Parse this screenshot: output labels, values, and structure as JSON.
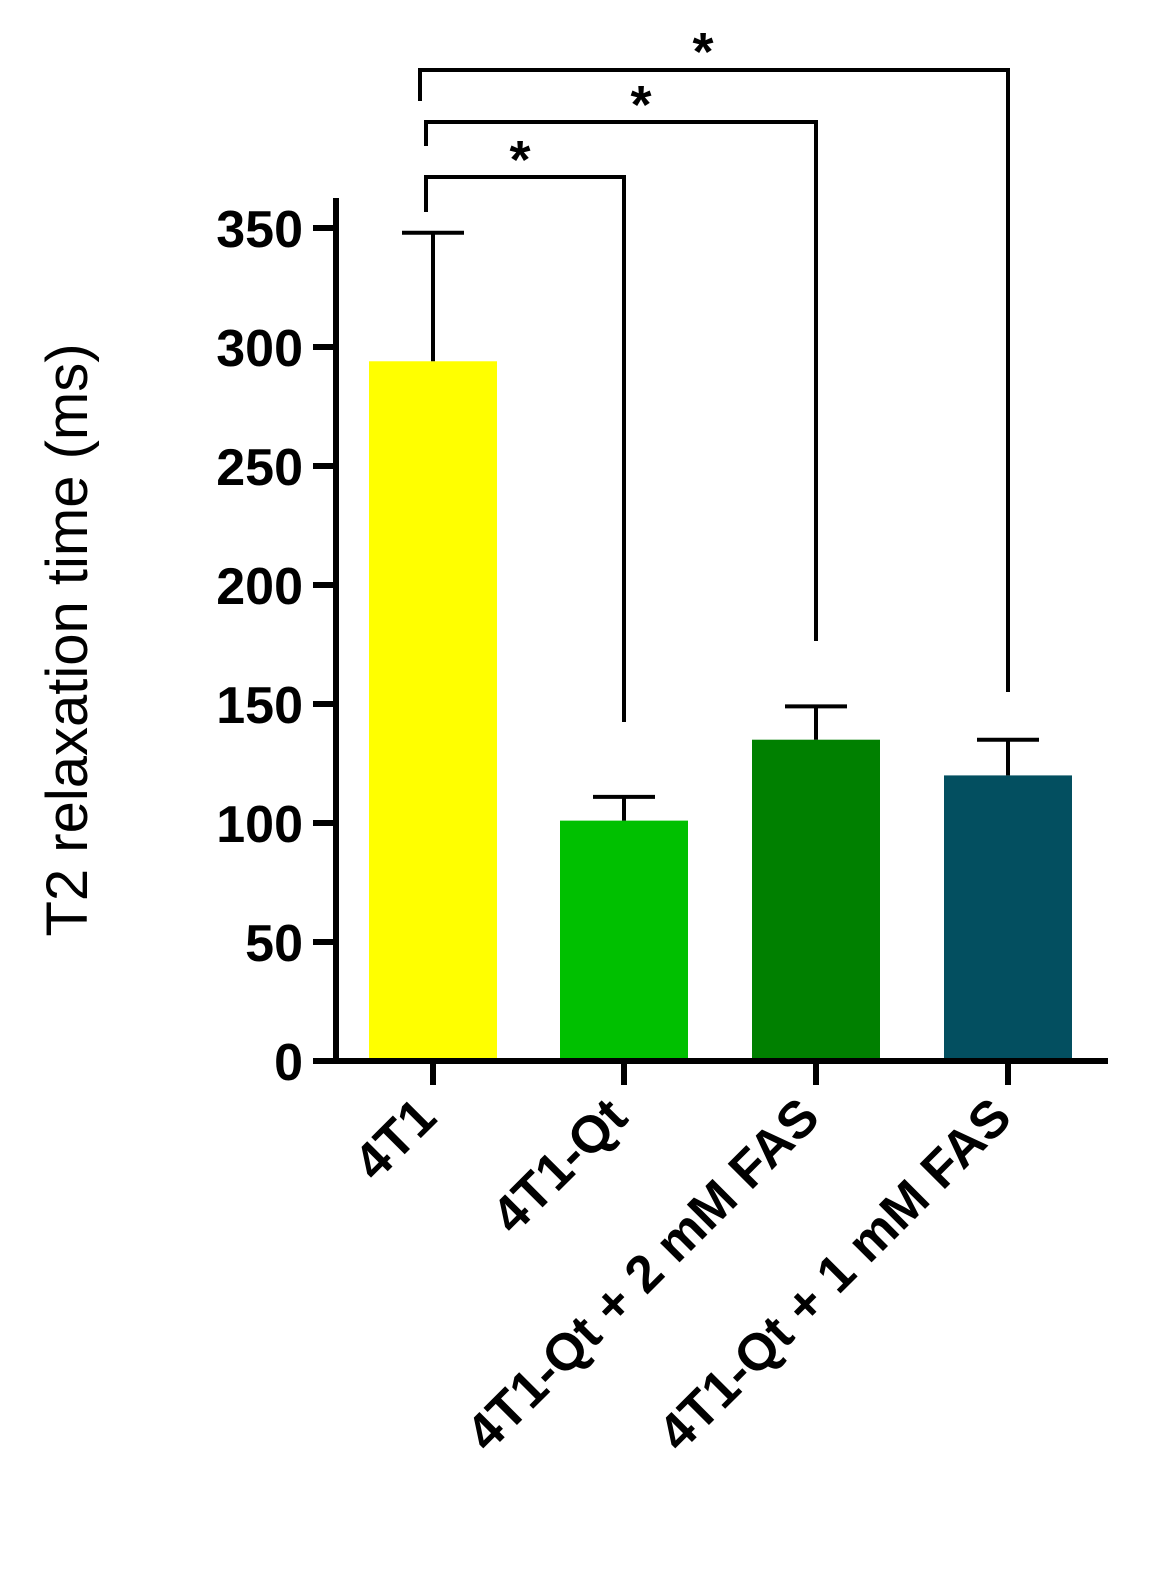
{
  "chart_data": {
    "type": "bar",
    "title": "",
    "xlabel": "",
    "ylabel": "T2 relaxation time (ms)",
    "ylim": [
      0,
      350
    ],
    "yticks": [
      0,
      50,
      100,
      150,
      200,
      250,
      300,
      350
    ],
    "grid": false,
    "legend": "none",
    "categories": [
      "4T1",
      "4T1-Qt",
      "4T1-Qt + 2 mM FAS",
      "4T1-Qt + 1 mM FAS"
    ],
    "values": [
      294,
      101,
      135,
      120
    ],
    "error": [
      54,
      10,
      14,
      15
    ],
    "colors": [
      "#ffff00",
      "#00c000",
      "#008000",
      "#034f60"
    ],
    "significance": [
      {
        "from": 0,
        "to": 1,
        "label": "*"
      },
      {
        "from": 0,
        "to": 2,
        "label": "*"
      },
      {
        "from": 0,
        "to": 3,
        "label": "*"
      }
    ]
  }
}
